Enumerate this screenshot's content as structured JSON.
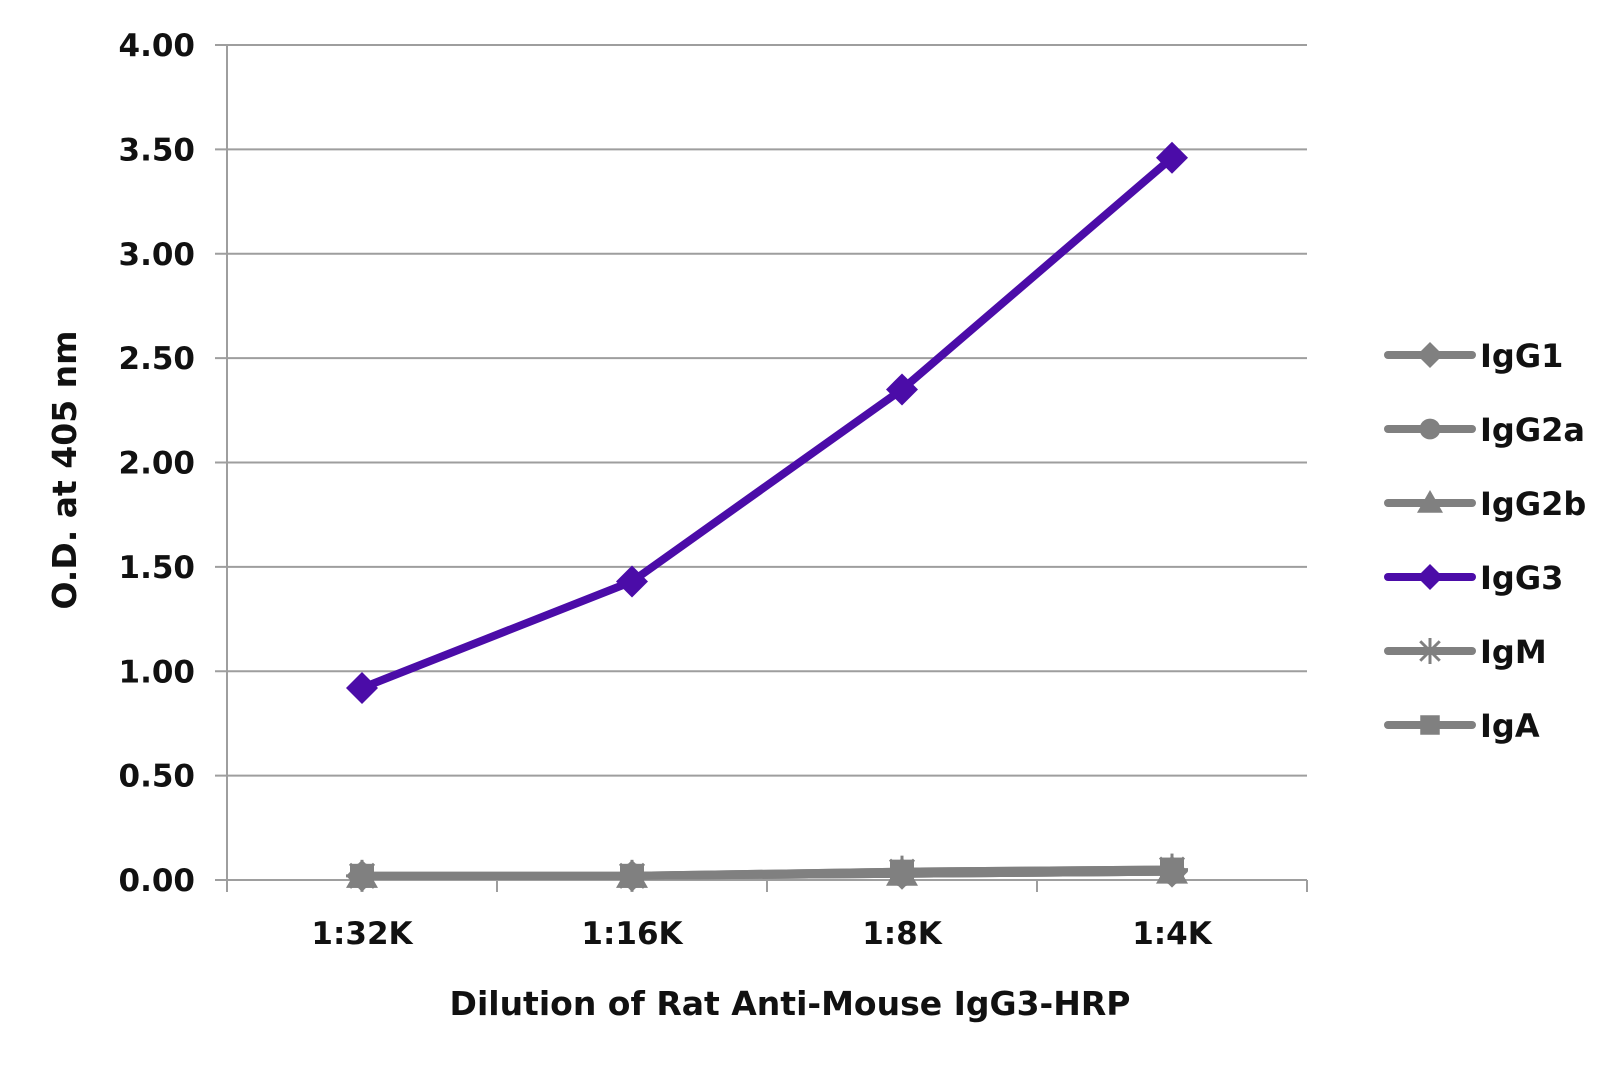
{
  "chart_data": {
    "type": "line",
    "title": "",
    "xlabel": "Dilution of Rat Anti-Mouse IgG3-HRP",
    "ylabel": "O.D. at 405 nm",
    "categories": [
      "1:32K",
      "1:16K",
      "1:8K",
      "1:4K"
    ],
    "ylim": [
      0,
      4
    ],
    "yticks": [
      "0.00",
      "0.50",
      "1.00",
      "1.50",
      "2.00",
      "2.50",
      "3.00",
      "3.50",
      "4.00"
    ],
    "grid": true,
    "legend_position": "right",
    "series": [
      {
        "name": "IgG1",
        "values": [
          0.02,
          0.02,
          0.03,
          0.04
        ],
        "color": "#808080",
        "marker": "diamond"
      },
      {
        "name": "IgG2a",
        "values": [
          0.02,
          0.02,
          0.03,
          0.04
        ],
        "color": "#808080",
        "marker": "circle"
      },
      {
        "name": "IgG2b",
        "values": [
          0.02,
          0.02,
          0.03,
          0.04
        ],
        "color": "#808080",
        "marker": "triangle"
      },
      {
        "name": "IgG3",
        "values": [
          0.92,
          1.43,
          2.35,
          3.46
        ],
        "color": "#4B0CA8",
        "marker": "diamond"
      },
      {
        "name": "IgM",
        "values": [
          0.02,
          0.02,
          0.04,
          0.05
        ],
        "color": "#808080",
        "marker": "star"
      },
      {
        "name": "IgA",
        "values": [
          0.02,
          0.02,
          0.04,
          0.05
        ],
        "color": "#808080",
        "marker": "square"
      }
    ]
  }
}
